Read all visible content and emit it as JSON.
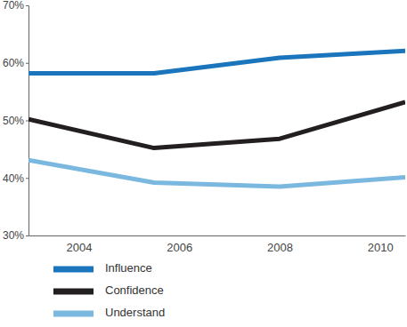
{
  "chart_data": {
    "type": "line",
    "x": [
      2003,
      2005.5,
      2008,
      2010.5
    ],
    "xlim": [
      2003,
      2010.5
    ],
    "xticks": [
      2004,
      2006,
      2008,
      2010
    ],
    "ylim": [
      30,
      70
    ],
    "yticks": [
      {
        "value": 30,
        "label": "30%"
      },
      {
        "value": 40,
        "label": "40%"
      },
      {
        "value": 50,
        "label": "50%"
      },
      {
        "value": 60,
        "label": "60%"
      },
      {
        "value": 70,
        "label": "70%"
      }
    ],
    "legend": "bottom-left",
    "series": [
      {
        "name": "Influence",
        "color": "#1a75bc",
        "values": [
          58.2,
          58.2,
          60.9,
          62.1
        ]
      },
      {
        "name": "Confidence",
        "color": "#231f20",
        "values": [
          50.2,
          45.2,
          46.8,
          53.2
        ]
      },
      {
        "name": "Understand",
        "color": "#7ab8e0",
        "values": [
          43.1,
          39.2,
          38.5,
          40.1
        ]
      }
    ]
  }
}
